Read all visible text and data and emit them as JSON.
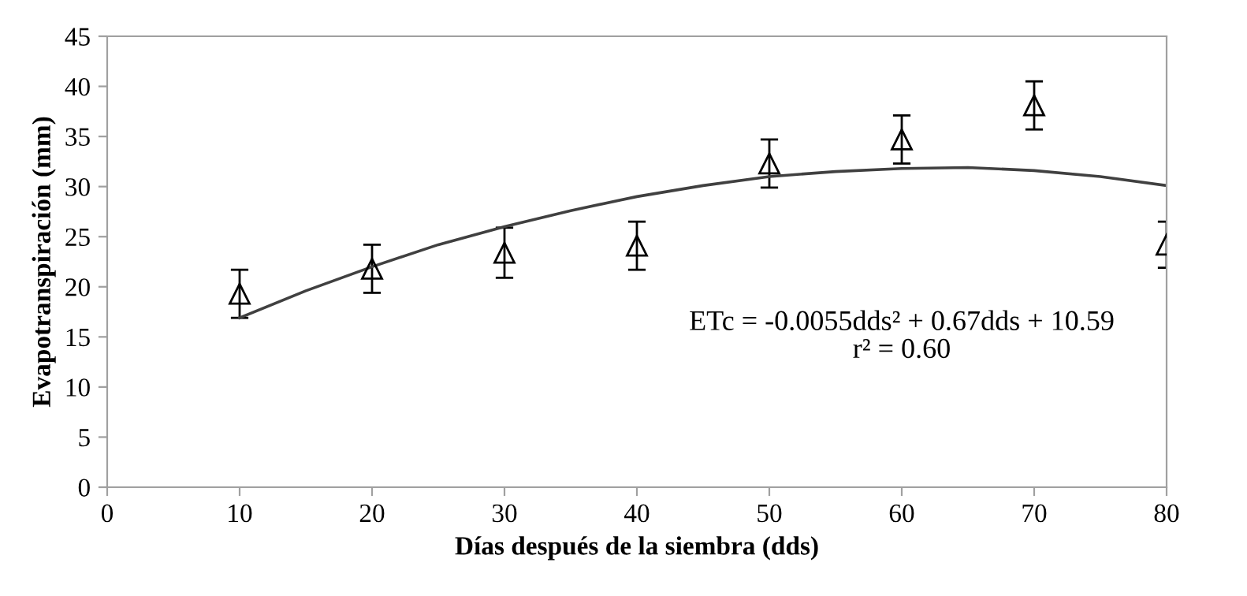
{
  "chart_data": {
    "type": "scatter",
    "xlabel": "Días después de la siembra (dds)",
    "ylabel": "Evapotranspiración (mm)",
    "xlim": [
      0,
      80
    ],
    "xticks": [
      0,
      10,
      20,
      30,
      40,
      50,
      60,
      70,
      80
    ],
    "ylim": [
      0,
      45
    ],
    "yticks": [
      0,
      5,
      10,
      15,
      20,
      25,
      30,
      35,
      40,
      45
    ],
    "grid": false,
    "legend": false,
    "series": [
      {
        "color": "#000000",
        "marker": "triangle",
        "x": [
          10,
          20,
          30,
          40,
          50,
          60,
          70,
          80
        ],
        "values": [
          19.3,
          21.8,
          23.4,
          24.1,
          32.3,
          34.7,
          38.1,
          24.2
        ],
        "errors": [
          2.4,
          2.4,
          2.5,
          2.4,
          2.4,
          2.4,
          2.4,
          2.3
        ]
      },
      {
        "type": "line",
        "color": "#404040",
        "marker": "none",
        "line_style": "solid",
        "x": [
          10,
          15,
          20,
          25,
          30,
          35,
          40,
          45,
          50,
          55,
          60,
          65,
          70,
          75,
          80
        ],
        "values": [
          16.9,
          19.6,
          22.0,
          24.2,
          26.0,
          27.6,
          29.0,
          30.1,
          31.0,
          31.5,
          31.8,
          31.9,
          31.6,
          31.0,
          30.1
        ]
      }
    ],
    "annotations": [
      "ETc = -0.0055dds² + 0.67dds + 10.59\nr² = 0.60"
    ]
  }
}
